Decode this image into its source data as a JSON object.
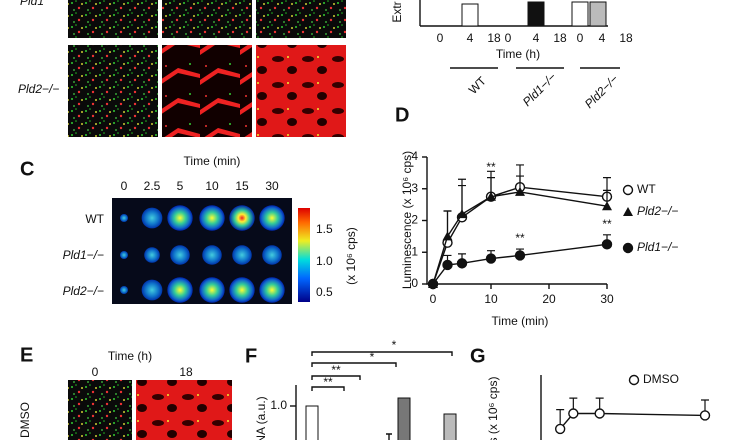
{
  "top_images": {
    "row_labels": [
      "Pld1",
      "Pld2−/−"
    ]
  },
  "top_bar_chart": {
    "ylabel": "Extr",
    "ticks": [
      "0",
      "4",
      "18",
      "0",
      "4",
      "18",
      "0",
      "4",
      "18"
    ],
    "xlabel": "Time (h)",
    "groups": [
      "WT",
      "Pld1−/−",
      "Pld2−/−"
    ]
  },
  "panel_c": {
    "letter": "C",
    "xlabel": "Time (min)",
    "times": [
      "0",
      "2.5",
      "5",
      "10",
      "15",
      "30"
    ],
    "rows": [
      "WT",
      "Pld1−/−",
      "Pld2−/−"
    ],
    "colorbar_ticks": [
      "1.5",
      "1.0",
      "0.5"
    ],
    "colorbar_label": "(x 10⁶ cps)"
  },
  "panel_e": {
    "letter": "E",
    "xlabel": "Time (h)",
    "times": [
      "0",
      "18"
    ],
    "row_label": "DMSO"
  },
  "panel_f": {
    "letter": "F",
    "ylabel": "NA (a.u.)",
    "tick": "1.0",
    "stars": [
      "*",
      "*",
      "**",
      "**"
    ]
  },
  "chart_data": [
    {
      "type": "line",
      "letter": "D",
      "xlabel": "Time (min)",
      "ylabel": "Luminescence (x 10⁶ cps)",
      "xlim": [
        0,
        30
      ],
      "xticks": [
        0,
        10,
        20,
        30
      ],
      "ylim": [
        0,
        4
      ],
      "yticks": [
        0,
        1,
        2,
        3,
        4
      ],
      "x": [
        0,
        2.5,
        5,
        10,
        15,
        30
      ],
      "series": [
        {
          "name": "WT",
          "marker": "open-circle",
          "color": "#111",
          "values": [
            0,
            1.3,
            2.1,
            2.75,
            3.05,
            2.75
          ],
          "errors": [
            0,
            1.0,
            1.2,
            0.8,
            0.7,
            0.6
          ]
        },
        {
          "name": "Pld2−/−",
          "marker": "triangle",
          "color": "#111",
          "values": [
            0,
            1.5,
            2.2,
            2.75,
            2.9,
            2.45
          ],
          "errors": [
            0,
            0.8,
            0.9,
            0.6,
            0.5,
            0.5
          ]
        },
        {
          "name": "Pld1−/−",
          "marker": "filled-circle",
          "color": "#111",
          "values": [
            0,
            0.6,
            0.65,
            0.8,
            0.9,
            1.25
          ],
          "errors": [
            0,
            0.3,
            0.3,
            0.25,
            0.2,
            0.3
          ]
        }
      ],
      "annotations": [
        "**",
        "**",
        "**"
      ]
    },
    {
      "type": "line",
      "letter": "G",
      "ylabel": "s (x 10⁶ cps)",
      "xlim": [
        0,
        30
      ],
      "ylim": [
        0,
        4
      ],
      "x": [
        2.5,
        5,
        10,
        30
      ],
      "series": [
        {
          "name": "DMSO",
          "marker": "open-circle",
          "color": "#111",
          "values": [
            1.2,
            2.0,
            2.0,
            1.9
          ],
          "errors": [
            1.0,
            0.8,
            0.8,
            0.8
          ]
        }
      ]
    }
  ]
}
